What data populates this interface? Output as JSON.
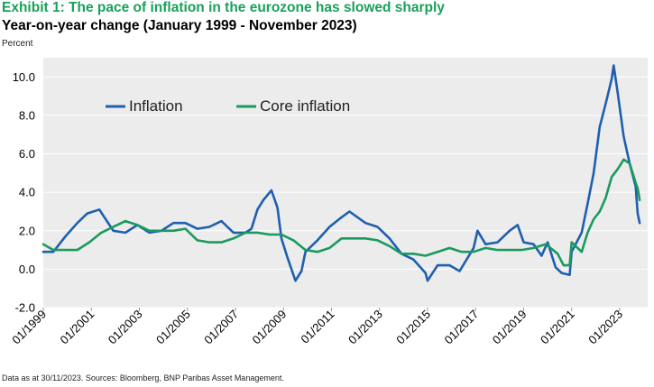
{
  "header": {
    "title": "Exhibit 1: The pace of inflation in the eurozone has slowed sharply",
    "subtitle": "Year-on-year change (January 1999 - November 2023)",
    "unit": "Percent"
  },
  "footer": {
    "source": "Data as at 30/11/2023. Sources: Bloomberg, BNP Paribas Asset Management."
  },
  "colors": {
    "inflation": "#1f5fae",
    "core_inflation": "#1a9a5e",
    "plot_background": "#ececec",
    "grid": "#ffffff"
  },
  "chart_data": {
    "type": "line",
    "title": "Exhibit 1: The pace of inflation in the eurozone has slowed sharply",
    "subtitle": "Year-on-year change (January 1999 - November 2023)",
    "ylabel": "Percent",
    "xlabel": "",
    "ylim": [
      -2.0,
      11.0
    ],
    "xlim": [
      "1999-01",
      "2024-03"
    ],
    "grid": true,
    "legend_position": "top-left",
    "y_ticks": [
      "-2.0",
      "0.0",
      "2.0",
      "4.0",
      "6.0",
      "8.0",
      "10.0"
    ],
    "x_ticks": [
      "01/1999",
      "01/2001",
      "01/2003",
      "01/2005",
      "01/2007",
      "01/2009",
      "01/2011",
      "01/2013",
      "01/2015",
      "01/2017",
      "01/2019",
      "01/2021",
      "01/2023"
    ],
    "series": [
      {
        "name": "Inflation",
        "color": "#1f5fae",
        "points": [
          [
            "1999-01",
            0.9
          ],
          [
            "1999-06",
            0.9
          ],
          [
            "1999-12",
            1.7
          ],
          [
            "2000-06",
            2.4
          ],
          [
            "2000-11",
            2.9
          ],
          [
            "2001-05",
            3.1
          ],
          [
            "2001-12",
            2.0
          ],
          [
            "2002-06",
            1.9
          ],
          [
            "2002-12",
            2.3
          ],
          [
            "2003-06",
            1.9
          ],
          [
            "2003-12",
            2.0
          ],
          [
            "2004-06",
            2.4
          ],
          [
            "2004-12",
            2.4
          ],
          [
            "2005-06",
            2.1
          ],
          [
            "2005-12",
            2.2
          ],
          [
            "2006-06",
            2.5
          ],
          [
            "2006-12",
            1.9
          ],
          [
            "2007-06",
            1.9
          ],
          [
            "2007-09",
            2.1
          ],
          [
            "2007-12",
            3.1
          ],
          [
            "2008-03",
            3.6
          ],
          [
            "2008-07",
            4.1
          ],
          [
            "2008-10",
            3.2
          ],
          [
            "2008-12",
            1.6
          ],
          [
            "2009-03",
            0.6
          ],
          [
            "2009-07",
            -0.6
          ],
          [
            "2009-10",
            -0.1
          ],
          [
            "2009-12",
            0.9
          ],
          [
            "2010-06",
            1.5
          ],
          [
            "2010-12",
            2.2
          ],
          [
            "2011-06",
            2.7
          ],
          [
            "2011-10",
            3.0
          ],
          [
            "2012-06",
            2.4
          ],
          [
            "2012-12",
            2.2
          ],
          [
            "2013-06",
            1.6
          ],
          [
            "2013-12",
            0.8
          ],
          [
            "2014-06",
            0.5
          ],
          [
            "2014-12",
            -0.2
          ],
          [
            "2015-01",
            -0.6
          ],
          [
            "2015-06",
            0.2
          ],
          [
            "2015-12",
            0.2
          ],
          [
            "2016-05",
            -0.1
          ],
          [
            "2016-12",
            1.1
          ],
          [
            "2017-02",
            2.0
          ],
          [
            "2017-06",
            1.3
          ],
          [
            "2017-12",
            1.4
          ],
          [
            "2018-06",
            2.0
          ],
          [
            "2018-10",
            2.3
          ],
          [
            "2019-01",
            1.4
          ],
          [
            "2019-06",
            1.3
          ],
          [
            "2019-10",
            0.7
          ],
          [
            "2020-01",
            1.4
          ],
          [
            "2020-05",
            0.1
          ],
          [
            "2020-08",
            -0.2
          ],
          [
            "2020-12",
            -0.3
          ],
          [
            "2021-01",
            0.9
          ],
          [
            "2021-06",
            1.9
          ],
          [
            "2021-09",
            3.4
          ],
          [
            "2021-12",
            5.0
          ],
          [
            "2022-03",
            7.4
          ],
          [
            "2022-06",
            8.6
          ],
          [
            "2022-09",
            9.9
          ],
          [
            "2022-10",
            10.6
          ],
          [
            "2022-12",
            9.2
          ],
          [
            "2023-03",
            6.9
          ],
          [
            "2023-06",
            5.5
          ],
          [
            "2023-09",
            4.3
          ],
          [
            "2023-10",
            2.9
          ],
          [
            "2023-11",
            2.4
          ]
        ]
      },
      {
        "name": "Core inflation",
        "color": "#1a9a5e",
        "points": [
          [
            "1999-01",
            1.3
          ],
          [
            "1999-06",
            1.0
          ],
          [
            "1999-12",
            1.0
          ],
          [
            "2000-06",
            1.0
          ],
          [
            "2000-12",
            1.4
          ],
          [
            "2001-06",
            1.9
          ],
          [
            "2001-12",
            2.2
          ],
          [
            "2002-06",
            2.5
          ],
          [
            "2002-12",
            2.3
          ],
          [
            "2003-06",
            2.0
          ],
          [
            "2003-12",
            2.0
          ],
          [
            "2004-06",
            2.0
          ],
          [
            "2004-12",
            2.1
          ],
          [
            "2005-06",
            1.5
          ],
          [
            "2005-12",
            1.4
          ],
          [
            "2006-06",
            1.4
          ],
          [
            "2006-12",
            1.6
          ],
          [
            "2007-06",
            1.9
          ],
          [
            "2007-12",
            1.9
          ],
          [
            "2008-06",
            1.8
          ],
          [
            "2008-12",
            1.8
          ],
          [
            "2009-06",
            1.5
          ],
          [
            "2009-12",
            1.0
          ],
          [
            "2010-06",
            0.9
          ],
          [
            "2010-12",
            1.1
          ],
          [
            "2011-06",
            1.6
          ],
          [
            "2011-12",
            1.6
          ],
          [
            "2012-06",
            1.6
          ],
          [
            "2012-12",
            1.5
          ],
          [
            "2013-06",
            1.2
          ],
          [
            "2013-12",
            0.8
          ],
          [
            "2014-06",
            0.8
          ],
          [
            "2014-12",
            0.7
          ],
          [
            "2015-06",
            0.9
          ],
          [
            "2015-12",
            1.1
          ],
          [
            "2016-06",
            0.9
          ],
          [
            "2016-12",
            0.9
          ],
          [
            "2017-06",
            1.1
          ],
          [
            "2017-12",
            1.0
          ],
          [
            "2018-06",
            1.0
          ],
          [
            "2018-12",
            1.0
          ],
          [
            "2019-06",
            1.1
          ],
          [
            "2019-12",
            1.3
          ],
          [
            "2020-06",
            0.8
          ],
          [
            "2020-09",
            0.2
          ],
          [
            "2020-12",
            0.2
          ],
          [
            "2021-01",
            1.4
          ],
          [
            "2021-06",
            0.9
          ],
          [
            "2021-09",
            1.9
          ],
          [
            "2021-12",
            2.6
          ],
          [
            "2022-03",
            3.0
          ],
          [
            "2022-06",
            3.7
          ],
          [
            "2022-09",
            4.8
          ],
          [
            "2022-12",
            5.2
          ],
          [
            "2023-03",
            5.7
          ],
          [
            "2023-06",
            5.5
          ],
          [
            "2023-09",
            4.5
          ],
          [
            "2023-10",
            4.2
          ],
          [
            "2023-11",
            3.6
          ]
        ]
      }
    ]
  }
}
